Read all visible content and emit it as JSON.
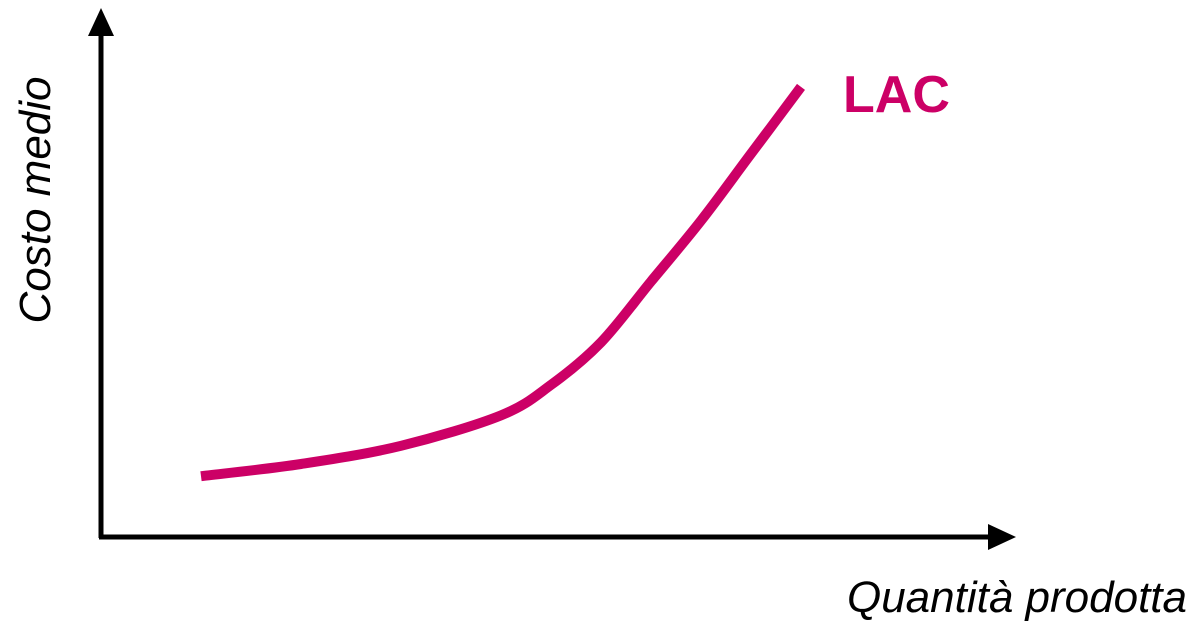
{
  "chart_data": {
    "type": "line",
    "title": "",
    "xlabel": "Quantità prodotta",
    "ylabel": "Costo medio",
    "grid": false,
    "legend": "none",
    "series": [
      {
        "name": "LAC",
        "color": "#cc0066",
        "x": [
          1.0,
          2.0,
          3.0,
          4.0,
          4.5,
          5.0,
          5.5,
          6.0,
          6.5,
          7.0
        ],
        "y": [
          1.0,
          1.2,
          1.5,
          2.0,
          2.5,
          3.2,
          4.2,
          5.2,
          6.3,
          7.4
        ]
      }
    ],
    "xlim": [
      0,
      9
    ],
    "ylim": [
      0,
      8.5
    ]
  }
}
